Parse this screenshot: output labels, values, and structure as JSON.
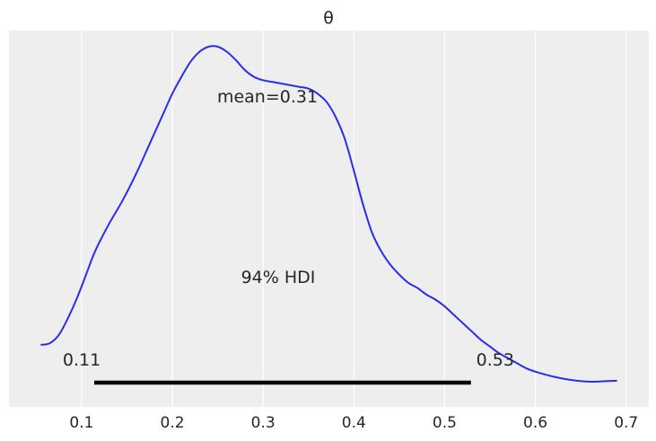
{
  "chart_data": {
    "type": "line",
    "title": "θ",
    "xlabel": "",
    "ylabel": "",
    "xlim": [
      0.02,
      0.725
    ],
    "ylim": [
      0,
      1
    ],
    "grid": true,
    "xticks": [
      0.1,
      0.2,
      0.3,
      0.4,
      0.5,
      0.6,
      0.7
    ],
    "xtick_labels": [
      "0.1",
      "0.2",
      "0.3",
      "0.4",
      "0.5",
      "0.6",
      "0.7"
    ],
    "series": [
      {
        "color": "#2a2eec",
        "x": [
          0.055,
          0.065,
          0.075,
          0.085,
          0.095,
          0.105,
          0.115,
          0.13,
          0.145,
          0.16,
          0.175,
          0.19,
          0.2,
          0.21,
          0.22,
          0.23,
          0.24,
          0.25,
          0.26,
          0.27,
          0.28,
          0.29,
          0.3,
          0.31,
          0.32,
          0.33,
          0.34,
          0.35,
          0.36,
          0.37,
          0.38,
          0.39,
          0.4,
          0.41,
          0.42,
          0.43,
          0.44,
          0.45,
          0.46,
          0.47,
          0.48,
          0.49,
          0.5,
          0.51,
          0.52,
          0.53,
          0.54,
          0.55,
          0.56,
          0.57,
          0.58,
          0.59,
          0.6,
          0.62,
          0.64,
          0.66,
          0.68,
          0.69
        ],
        "y": [
          0.11,
          0.115,
          0.14,
          0.19,
          0.25,
          0.32,
          0.39,
          0.47,
          0.54,
          0.62,
          0.71,
          0.8,
          0.86,
          0.91,
          0.955,
          0.985,
          1.0,
          1.0,
          0.985,
          0.96,
          0.93,
          0.91,
          0.9,
          0.895,
          0.89,
          0.885,
          0.88,
          0.875,
          0.86,
          0.835,
          0.79,
          0.725,
          0.63,
          0.53,
          0.445,
          0.39,
          0.35,
          0.32,
          0.295,
          0.28,
          0.26,
          0.245,
          0.225,
          0.2,
          0.175,
          0.15,
          0.125,
          0.105,
          0.085,
          0.07,
          0.055,
          0.04,
          0.03,
          0.015,
          0.005,
          0.0,
          0.002,
          0.003
        ]
      }
    ],
    "hdi": {
      "low": 0.11,
      "high": 0.53,
      "low_label": "0.11",
      "high_label": "0.53",
      "label": "94% HDI",
      "color": "#000000"
    },
    "mean_label": "mean=0.31"
  }
}
